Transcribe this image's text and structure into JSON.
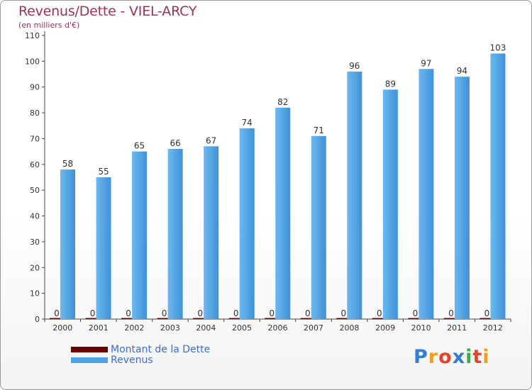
{
  "title": "Revenus/Dette - VIEL-ARCY",
  "subtitle": "(en milliers d'€)",
  "colors": {
    "title": "#a0305a",
    "revenus": "#4da3e6",
    "revenus_dark": "#1e6fb0",
    "dette": "#6b0000",
    "axis": "#444444",
    "grid": "#cfcfcf",
    "legend_text": "#3a6ee0"
  },
  "legend": {
    "dette_label": "Montant de la Dette",
    "revenus_label": "Revenus"
  },
  "logo": {
    "letters": [
      "P",
      "r",
      "o",
      "x",
      "i",
      "t",
      "i"
    ],
    "colors": [
      "#2f7fd6",
      "#f0a020",
      "#e8442a",
      "#2f7fd6",
      "#36b04a",
      "#e8442a",
      "#f0a020"
    ]
  },
  "chart_data": {
    "type": "bar",
    "title": "Revenus/Dette - VIEL-ARCY",
    "ylabel": "(en milliers d'€)",
    "xlabel": "",
    "ylim": [
      0,
      110
    ],
    "yticks": [
      0,
      10,
      20,
      30,
      40,
      50,
      60,
      70,
      80,
      90,
      100,
      110
    ],
    "categories": [
      "2000",
      "2001",
      "2002",
      "2003",
      "2004",
      "2005",
      "2006",
      "2007",
      "2008",
      "2009",
      "2010",
      "2011",
      "2012"
    ],
    "series": [
      {
        "name": "Montant de la Dette",
        "values": [
          0,
          0,
          0,
          0,
          0,
          0,
          0,
          0,
          0,
          0,
          0,
          0,
          0
        ]
      },
      {
        "name": "Revenus",
        "values": [
          58,
          55,
          65,
          66,
          67,
          74,
          82,
          71,
          96,
          89,
          97,
          94,
          103
        ]
      }
    ],
    "grid": false,
    "legend_position": "bottom-left"
  }
}
